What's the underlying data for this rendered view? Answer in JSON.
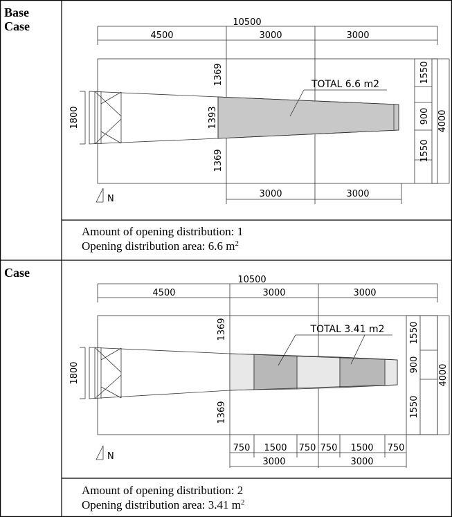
{
  "rows": [
    {
      "label_line1": "Base",
      "label_line2": "Case",
      "drawing": {
        "overall_length": "10500",
        "segment_1": "4500",
        "segment_2": "3000",
        "segment_3": "3000",
        "left_height": "1800",
        "mid_height": "1393",
        "upper_offset": "1369",
        "lower_offset": "1369",
        "right_top": "1550",
        "right_middle": "900",
        "right_bottom": "1550",
        "right_total": "4000",
        "bottom_segment_1": "3000",
        "bottom_segment_2": "3000",
        "total_label": "TOTAL 6.6 m2",
        "north": "N"
      },
      "caption": {
        "amount_line": "Amount of opening distribution: 1",
        "area_line": "Opening distribution area: 6.6 m",
        "area_sup": "2"
      }
    },
    {
      "label_line1": "Case",
      "label_line2": "",
      "drawing": {
        "overall_length": "10500",
        "segment_1": "4500",
        "segment_2": "3000",
        "segment_3": "3000",
        "left_height": "1800",
        "upper_offset": "1369",
        "lower_offset": "1369",
        "right_top": "1550",
        "right_middle": "900",
        "right_bottom": "1550",
        "right_total": "4000",
        "sub_1": "750",
        "sub_2": "1500",
        "sub_3": "750",
        "sub_4": "750",
        "sub_5": "1500",
        "sub_6": "750",
        "bottom_segment_1": "3000",
        "bottom_segment_2": "3000",
        "total_label": "TOTAL 3.41 m2",
        "north": "N"
      },
      "caption": {
        "amount_line": "Amount of opening distribution: 2",
        "area_line": "Opening distribution area: 3.41 m",
        "area_sup": "2"
      }
    }
  ]
}
